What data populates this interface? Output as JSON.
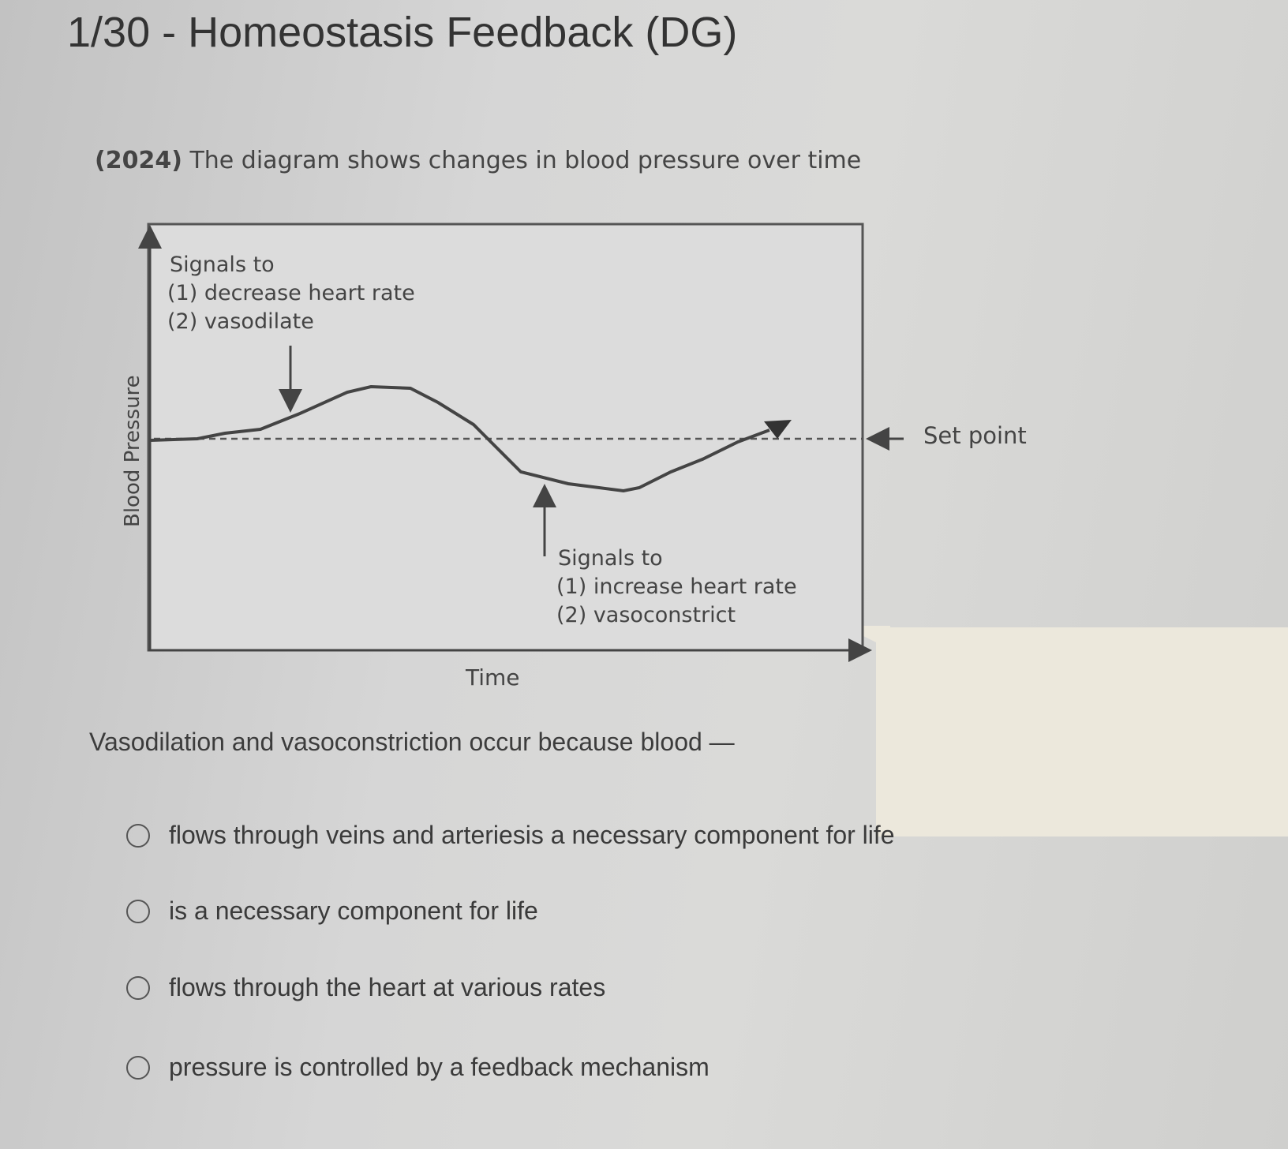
{
  "header": {
    "title": "1/30 - Homeostasis Feedback (DG)"
  },
  "question": {
    "year": "(2024)",
    "intro": "The diagram shows changes in blood pressure over time",
    "stem": "Vasodilation and vasoconstriction occur because blood —"
  },
  "diagram": {
    "y_axis_label": "Blood Pressure",
    "x_axis_label": "Time",
    "set_point_label": "Set point",
    "upper_annotation": [
      "Signals to",
      "(1) decrease heart rate",
      "(2) vasodilate"
    ],
    "lower_annotation": [
      "Signals to",
      "(1) increase heart rate",
      "(2) vasoconstrict"
    ]
  },
  "options": [
    {
      "label": "flows through veins and arteriesis a necessary component for life",
      "selected": false
    },
    {
      "label": "is a necessary component for life",
      "selected": false
    },
    {
      "label": "flows through the heart at various rates",
      "selected": false
    },
    {
      "label": "pressure is controlled by a feedback mechanism",
      "selected": false
    }
  ]
}
